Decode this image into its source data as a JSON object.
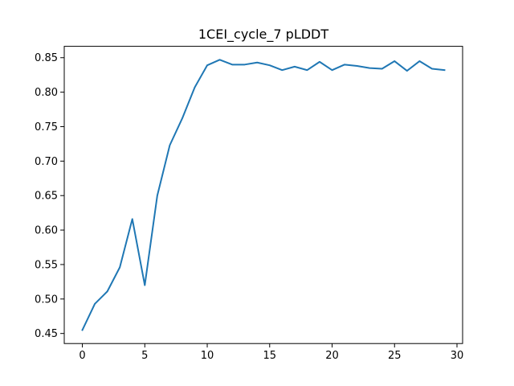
{
  "chart_data": {
    "type": "line",
    "title": "1CEI_cycle_7 pLDDT",
    "xlabel": "",
    "ylabel": "",
    "xlim": [
      -1.45,
      30.45
    ],
    "ylim": [
      0.4354,
      0.8665
    ],
    "xticks": [
      0,
      5,
      10,
      15,
      20,
      25,
      30
    ],
    "xtick_labels": [
      "0",
      "5",
      "10",
      "15",
      "20",
      "25",
      "30"
    ],
    "yticks": [
      0.45,
      0.5,
      0.55,
      0.6,
      0.65,
      0.7,
      0.75,
      0.8,
      0.85
    ],
    "ytick_labels": [
      "0.45",
      "0.50",
      "0.55",
      "0.60",
      "0.65",
      "0.70",
      "0.75",
      "0.80",
      "0.85"
    ],
    "grid": false,
    "series": [
      {
        "color": "#1f77b4",
        "x": [
          0,
          1,
          2,
          3,
          4,
          5,
          6,
          7,
          8,
          9,
          10,
          11,
          12,
          13,
          14,
          15,
          16,
          17,
          18,
          19,
          20,
          21,
          22,
          23,
          24,
          25,
          26,
          27,
          28,
          29
        ],
        "values": [
          0.455,
          0.493,
          0.511,
          0.546,
          0.616,
          0.52,
          0.65,
          0.723,
          0.762,
          0.807,
          0.839,
          0.847,
          0.84,
          0.84,
          0.843,
          0.839,
          0.832,
          0.837,
          0.832,
          0.844,
          0.832,
          0.84,
          0.838,
          0.835,
          0.834,
          0.845,
          0.831,
          0.845,
          0.834,
          0.832
        ]
      }
    ]
  }
}
